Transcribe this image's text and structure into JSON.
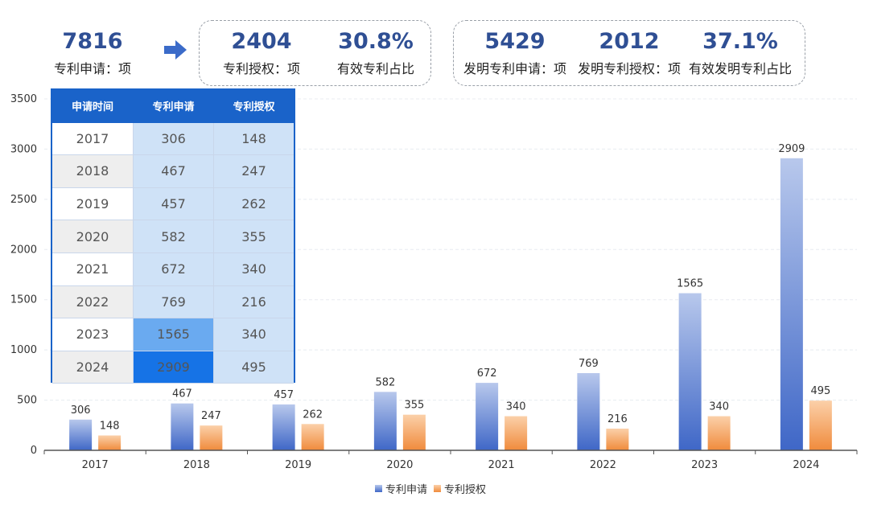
{
  "summary": {
    "total_applications": {
      "value": "7816",
      "label": "专利申请：项"
    },
    "granted": {
      "value": "2404",
      "label": "专利授权：项"
    },
    "valid_ratio": {
      "value": "30.8%",
      "label": "有效专利占比"
    },
    "invention_applications": {
      "value": "5429",
      "label": "发明专利申请：项"
    },
    "invention_granted": {
      "value": "2012",
      "label": "发明专利授权：项"
    },
    "valid_invention_ratio": {
      "value": "37.1%",
      "label": "有效发明专利占比"
    }
  },
  "colors": {
    "number": "#2f4f94",
    "table_header": "#1a63c9",
    "bar_apply_top": "#b8c8ec",
    "bar_apply_bottom": "#3f67c7",
    "bar_grant_top": "#fbd0a9",
    "bar_grant_bottom": "#f08b3c"
  },
  "table": {
    "headers": [
      "申请时间",
      "专利申请",
      "专利授权"
    ],
    "rows": [
      [
        "2017",
        "306",
        "148"
      ],
      [
        "2018",
        "467",
        "247"
      ],
      [
        "2019",
        "457",
        "262"
      ],
      [
        "2020",
        "582",
        "355"
      ],
      [
        "2021",
        "672",
        "340"
      ],
      [
        "2022",
        "769",
        "216"
      ],
      [
        "2023",
        "1565",
        "340"
      ],
      [
        "2024",
        "2909",
        "495"
      ]
    ]
  },
  "chart_data": {
    "type": "bar",
    "categories": [
      "2017",
      "2018",
      "2019",
      "2020",
      "2021",
      "2022",
      "2023",
      "2024"
    ],
    "series": [
      {
        "name": "专利申请",
        "values": [
          306,
          467,
          457,
          582,
          672,
          769,
          1565,
          2909
        ]
      },
      {
        "name": "专利授权",
        "values": [
          148,
          247,
          262,
          355,
          340,
          216,
          340,
          495
        ]
      }
    ],
    "yticks": [
      "0",
      "500",
      "1000",
      "1500",
      "2000",
      "2500",
      "3000",
      "3500"
    ],
    "ylim": [
      0,
      3500
    ],
    "grid": true,
    "legend_position": "bottom"
  }
}
